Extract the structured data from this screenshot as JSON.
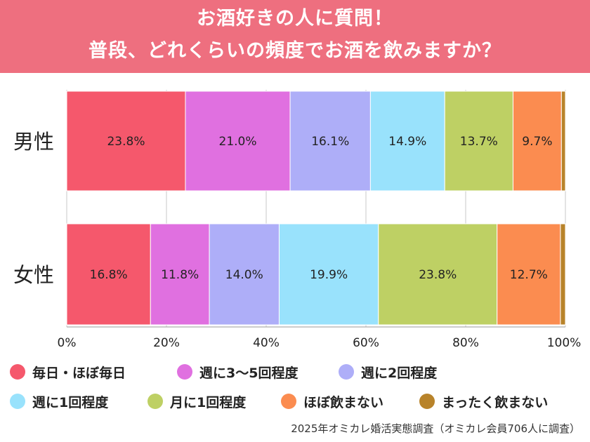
{
  "header": {
    "title_line1": "お酒好きの人に質問！",
    "title_line2": "普段、どれくらいの頻度でお酒を飲みますか？"
  },
  "colors": {
    "header_bg": "#ee6f7f",
    "series": [
      "#f5586c",
      "#e070e0",
      "#aeaef8",
      "#99e2fc",
      "#bed064",
      "#fb8c50",
      "#b8832a"
    ]
  },
  "chart_data": {
    "type": "bar",
    "orientation": "horizontal",
    "stacked": true,
    "categories": [
      "男性",
      "女性"
    ],
    "series": [
      {
        "name": "毎日・ほぼ毎日",
        "values": [
          23.8,
          16.8
        ],
        "labels": [
          "23.8%",
          "16.8%"
        ]
      },
      {
        "name": "週に3〜5回程度",
        "values": [
          21.0,
          11.8
        ],
        "labels": [
          "21.0%",
          "11.8%"
        ]
      },
      {
        "name": "週に2回程度",
        "values": [
          16.1,
          14.0
        ],
        "labels": [
          "16.1%",
          "14.0%"
        ]
      },
      {
        "name": "週に1回程度",
        "values": [
          14.9,
          19.9
        ],
        "labels": [
          "14.9%",
          "19.9%"
        ]
      },
      {
        "name": "月に1回程度",
        "values": [
          13.7,
          23.8
        ],
        "labels": [
          "13.7%",
          "23.8%"
        ]
      },
      {
        "name": "ほぼ飲まない",
        "values": [
          9.7,
          12.7
        ],
        "labels": [
          "9.7%",
          "12.7%"
        ]
      },
      {
        "name": "まったく飲まない",
        "values": [
          0.8,
          1.0
        ],
        "labels": [
          "",
          ""
        ]
      }
    ],
    "xlim": [
      0,
      100
    ],
    "xticks": [
      "0%",
      "20%",
      "40%",
      "60%",
      "80%",
      "100%"
    ],
    "grid": true,
    "legend_position": "bottom"
  },
  "source": "2025年オミカレ婚活実態調査（オミカレ会員706人に調査）"
}
